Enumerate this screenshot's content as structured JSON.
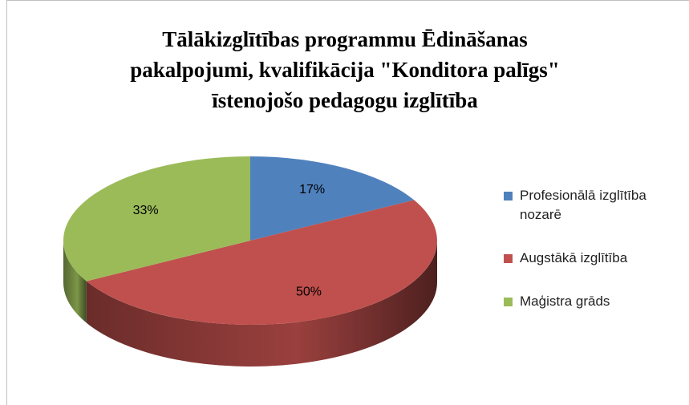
{
  "chart_data": {
    "type": "pie3d",
    "title": [
      "Tālākizglītības programmu Ēdināšanas",
      "pakalpojumi, kvalifikācija  \"Konditora palīgs\"",
      "īstenojošo pedagogu izglītība"
    ],
    "categories": [
      "Profesionālā izglītība nozarē",
      "Augstākā izglītība",
      "Maģistra grāds"
    ],
    "values": [
      17,
      50,
      33
    ],
    "value_labels": [
      "17%",
      "50%",
      "33%"
    ],
    "colors": [
      "#4f81bd",
      "#c0504d",
      "#9bbb59"
    ],
    "legend": "right"
  }
}
